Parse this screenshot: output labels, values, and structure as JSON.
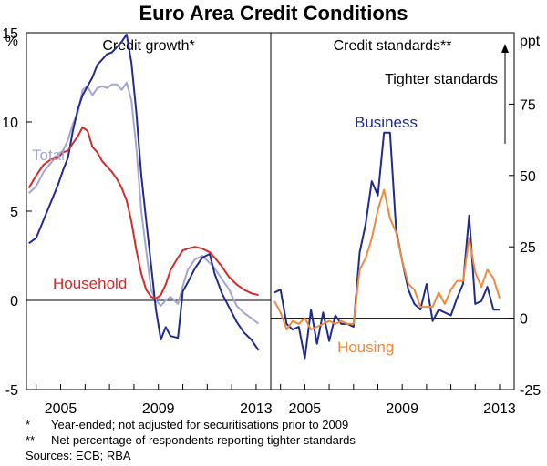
{
  "title": "Euro Area Credit Conditions",
  "footnotes": {
    "f1_mark": "*",
    "f1_text": "Year-ended; not adjusted for securitisations prior to 2009",
    "f2_mark": "**",
    "f2_text": "Net percentage of respondents reporting tighter standards",
    "sources": "Sources: ECB; RBA"
  },
  "colors": {
    "business": "#1f2b8f",
    "total": "#a4a6cf",
    "household": "#d42a2a",
    "housing": "#f0893c"
  },
  "chart_data": [
    {
      "type": "line",
      "title": "Credit growth*",
      "ylabel": "%",
      "ylim": [
        -5,
        15
      ],
      "yticks": [
        -5,
        0,
        5,
        10,
        15
      ],
      "xlim": [
        2003.6,
        2013.6
      ],
      "xticks": [
        2005,
        2009,
        2013
      ],
      "series": [
        {
          "name": "Total",
          "color_key": "total",
          "x": [
            2003.7,
            2004.0,
            2004.3,
            2004.6,
            2004.9,
            2005.1,
            2005.3,
            2005.5,
            2005.7,
            2005.9,
            2006.1,
            2006.3,
            2006.5,
            2006.7,
            2006.9,
            2007.1,
            2007.3,
            2007.5,
            2007.7,
            2007.9,
            2008.1,
            2008.3,
            2008.5,
            2008.7,
            2008.9,
            2009.1,
            2009.3,
            2009.5,
            2009.8,
            2010.0,
            2010.2,
            2010.5,
            2010.8,
            2011.1,
            2011.3,
            2011.6,
            2011.9,
            2012.2,
            2012.5,
            2012.8,
            2013.1
          ],
          "y": [
            6.0,
            6.4,
            7.2,
            7.7,
            8.2,
            8.4,
            9.0,
            9.9,
            10.5,
            11.8,
            12.0,
            11.5,
            11.9,
            12.0,
            11.9,
            12.1,
            12.1,
            11.8,
            12.2,
            11.2,
            8.5,
            5.0,
            2.8,
            0.6,
            0.0,
            -0.3,
            0.0,
            0.2,
            -0.2,
            0.8,
            1.7,
            2.3,
            2.5,
            2.1,
            1.8,
            1.2,
            0.6,
            -0.3,
            -0.7,
            -1.0,
            -1.3
          ]
        },
        {
          "name": "Business",
          "color_key": "business",
          "x": [
            2003.7,
            2004.0,
            2004.3,
            2004.6,
            2004.9,
            2005.1,
            2005.3,
            2005.5,
            2005.7,
            2005.9,
            2006.1,
            2006.3,
            2006.5,
            2006.7,
            2006.9,
            2007.1,
            2007.3,
            2007.5,
            2007.7,
            2007.9,
            2008.1,
            2008.3,
            2008.5,
            2008.7,
            2008.9,
            2009.1,
            2009.3,
            2009.5,
            2009.8,
            2010.0,
            2010.2,
            2010.5,
            2010.8,
            2011.1,
            2011.3,
            2011.6,
            2011.9,
            2012.2,
            2012.5,
            2012.8,
            2013.1
          ],
          "y": [
            3.2,
            3.5,
            4.5,
            5.5,
            6.5,
            7.3,
            8.0,
            9.5,
            10.7,
            11.5,
            12.0,
            12.5,
            13.2,
            13.5,
            13.8,
            13.9,
            14.2,
            14.5,
            14.9,
            13.3,
            10.5,
            7.0,
            4.5,
            2.0,
            -0.5,
            -2.2,
            -1.5,
            -2.0,
            -2.1,
            0.5,
            1.0,
            1.8,
            2.4,
            2.6,
            1.5,
            0.4,
            -0.4,
            -1.2,
            -1.8,
            -2.2,
            -2.8
          ]
        },
        {
          "name": "Household",
          "color_key": "household",
          "x": [
            2003.7,
            2004.0,
            2004.3,
            2004.6,
            2004.9,
            2005.1,
            2005.3,
            2005.5,
            2005.7,
            2005.9,
            2006.1,
            2006.3,
            2006.5,
            2006.7,
            2006.9,
            2007.1,
            2007.3,
            2007.5,
            2007.7,
            2007.9,
            2008.1,
            2008.3,
            2008.5,
            2008.7,
            2008.9,
            2009.1,
            2009.3,
            2009.5,
            2009.8,
            2010.0,
            2010.2,
            2010.5,
            2010.8,
            2011.1,
            2011.3,
            2011.6,
            2011.9,
            2012.2,
            2012.5,
            2012.8,
            2013.1
          ],
          "y": [
            6.3,
            7.0,
            7.6,
            7.9,
            8.0,
            8.3,
            8.4,
            8.8,
            9.2,
            9.7,
            9.5,
            8.6,
            8.3,
            7.8,
            7.5,
            7.2,
            6.8,
            6.3,
            5.6,
            4.4,
            2.8,
            1.5,
            0.6,
            0.2,
            0.1,
            0.3,
            0.9,
            1.7,
            2.4,
            2.8,
            2.9,
            3.0,
            2.9,
            2.7,
            2.4,
            1.9,
            1.3,
            0.9,
            0.6,
            0.4,
            0.3
          ]
        }
      ],
      "annotations": [
        "Total",
        "Household"
      ]
    },
    {
      "type": "line",
      "title": "Credit standards**",
      "ylabel": "ppt",
      "ylim": [
        -25,
        100
      ],
      "yticks": [
        -25,
        0,
        25,
        50,
        75
      ],
      "xlim": [
        2003.6,
        2013.6
      ],
      "xticks": [
        2005,
        2009,
        2013
      ],
      "series": [
        {
          "name": "Business",
          "color_key": "business",
          "x": [
            2003.75,
            2004.0,
            2004.25,
            2004.5,
            2004.75,
            2005.0,
            2005.25,
            2005.5,
            2005.75,
            2006.0,
            2006.25,
            2006.5,
            2006.75,
            2007.0,
            2007.25,
            2007.5,
            2007.75,
            2008.0,
            2008.25,
            2008.5,
            2008.75,
            2009.0,
            2009.25,
            2009.5,
            2009.75,
            2010.0,
            2010.25,
            2010.5,
            2010.75,
            2011.0,
            2011.25,
            2011.5,
            2011.75,
            2012.0,
            2012.25,
            2012.5,
            2012.75,
            2013.0
          ],
          "y": [
            9,
            10,
            -2,
            -4,
            -3,
            -14,
            3,
            -9,
            2,
            -8,
            1,
            -2,
            -2,
            -3,
            23,
            33,
            48,
            43,
            65,
            65,
            31,
            20,
            10,
            5,
            3,
            12,
            -1,
            3,
            2,
            1,
            7,
            12,
            36,
            5,
            6,
            11,
            3,
            3
          ]
        },
        {
          "name": "Housing",
          "color_key": "housing",
          "x": [
            2003.75,
            2004.0,
            2004.25,
            2004.5,
            2004.75,
            2005.0,
            2005.25,
            2005.5,
            2005.75,
            2006.0,
            2006.25,
            2006.5,
            2006.75,
            2007.0,
            2007.25,
            2007.5,
            2007.75,
            2008.0,
            2008.25,
            2008.5,
            2008.75,
            2009.0,
            2009.25,
            2009.5,
            2009.75,
            2010.0,
            2010.25,
            2010.5,
            2010.75,
            2011.0,
            2011.25,
            2011.5,
            2011.75,
            2012.0,
            2012.25,
            2012.5,
            2012.75,
            2013.0
          ],
          "y": [
            6,
            2,
            -4,
            -1,
            -2,
            0,
            -4,
            -3,
            -2,
            -1,
            -2,
            -1,
            -2,
            -2,
            17,
            21,
            28,
            38,
            45,
            35,
            30,
            20,
            12,
            10,
            4,
            4,
            4,
            9,
            5,
            10,
            13,
            13,
            28,
            16,
            11,
            17,
            14,
            7
          ]
        }
      ],
      "annotations": [
        "Business",
        "Housing",
        "Tighter standards"
      ]
    }
  ]
}
